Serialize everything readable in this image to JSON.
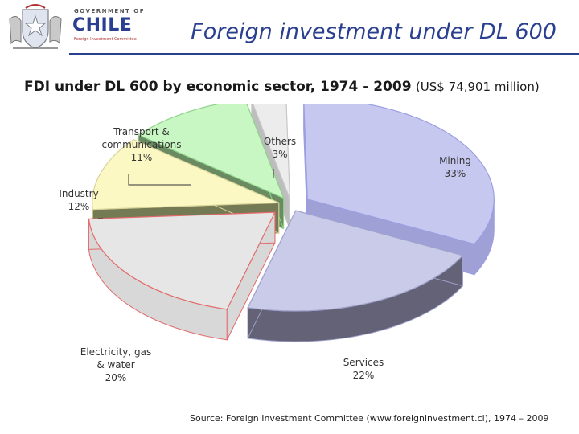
{
  "header": {
    "government_label": "GOVERNMENT OF",
    "country_label": "CHILE",
    "committee_label": "Foreign Investment Committee",
    "slide_title": "Foreign investment under DL 600"
  },
  "chart_heading": {
    "main": "FDI under DL 600 by economic sector, 1974 - 2009",
    "total": "(US$ 74,901 million)"
  },
  "colors": {
    "mining": "#c7c8f0",
    "services": "#c9cbe9",
    "electricity": "#e6e6e6",
    "industry": "#fbf8c4",
    "transport": "#c9f7c4",
    "others": "#ececec",
    "accent": "#2a3f8f"
  },
  "chart_data": {
    "type": "pie",
    "title": "FDI under DL 600 by economic sector, 1974 - 2009",
    "subtitle": "(US$ 74,901 million)",
    "style": "3d-exploded",
    "slices": [
      {
        "key": "mining",
        "label": [
          "Mining",
          "33%"
        ],
        "value": 33
      },
      {
        "key": "services",
        "label": [
          "Services",
          "22%"
        ],
        "value": 22
      },
      {
        "key": "electricity",
        "label": [
          "Electricity, gas",
          "& water",
          "20%"
        ],
        "value": 20
      },
      {
        "key": "industry",
        "label": [
          "Industry",
          "12%"
        ],
        "value": 12
      },
      {
        "key": "transport",
        "label": [
          "Transport &",
          "communications",
          "11%"
        ],
        "value": 11
      },
      {
        "key": "others",
        "label": [
          "Others",
          "3%"
        ],
        "value": 3
      }
    ]
  },
  "source": "Source: Foreign Investment Committee (www.foreigninvestment.cl), 1974 – 2009"
}
